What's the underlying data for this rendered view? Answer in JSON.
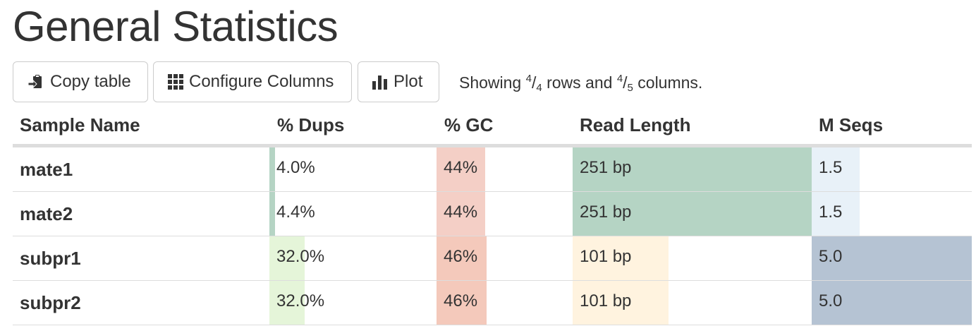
{
  "title": "General Statistics",
  "toolbar": {
    "copy_label": "Copy table",
    "configure_label": "Configure Columns",
    "plot_label": "Plot",
    "showing": {
      "prefix": "Showing ",
      "rows_shown": "4",
      "rows_total": "4",
      "middle": " rows and ",
      "cols_shown": "4",
      "cols_total": "5",
      "suffix": " columns."
    }
  },
  "table": {
    "columns": [
      "Sample Name",
      "% Dups",
      "% GC",
      "Read Length",
      "M Seqs"
    ],
    "rows": [
      {
        "name": "mate1",
        "dups": "4.0%",
        "gc": "44%",
        "read_length": "251 bp",
        "mseqs": "1.5"
      },
      {
        "name": "mate2",
        "dups": "4.4%",
        "gc": "44%",
        "read_length": "251 bp",
        "mseqs": "1.5"
      },
      {
        "name": "subpr1",
        "dups": "32.0%",
        "gc": "46%",
        "read_length": "101 bp",
        "mseqs": "5.0"
      },
      {
        "name": "subpr2",
        "dups": "32.0%",
        "gc": "46%",
        "read_length": "101 bp",
        "mseqs": "5.0"
      }
    ],
    "bar_fractions": {
      "dups": [
        0.032,
        0.032,
        0.21,
        0.21
      ],
      "gc": [
        0.36,
        0.36,
        0.37,
        0.37
      ],
      "read_length": [
        1.0,
        1.0,
        0.4,
        0.4
      ],
      "mseqs": [
        0.3,
        0.3,
        1.0,
        1.0
      ]
    },
    "bar_colors": {
      "dups": [
        "#b5d4c4",
        "#b5d4c4",
        "#e5f5d9",
        "#e5f5d9"
      ],
      "gc": [
        "#f4cfc6",
        "#f4cfc6",
        "#f4c9bb",
        "#f4c9bb"
      ],
      "read_length": [
        "#b5d4c4",
        "#b5d4c4",
        "#fff3df",
        "#fff3df"
      ],
      "mseqs": [
        "#e8f1f8",
        "#e8f1f8",
        "#b5c3d3",
        "#b5c3d3"
      ]
    }
  }
}
